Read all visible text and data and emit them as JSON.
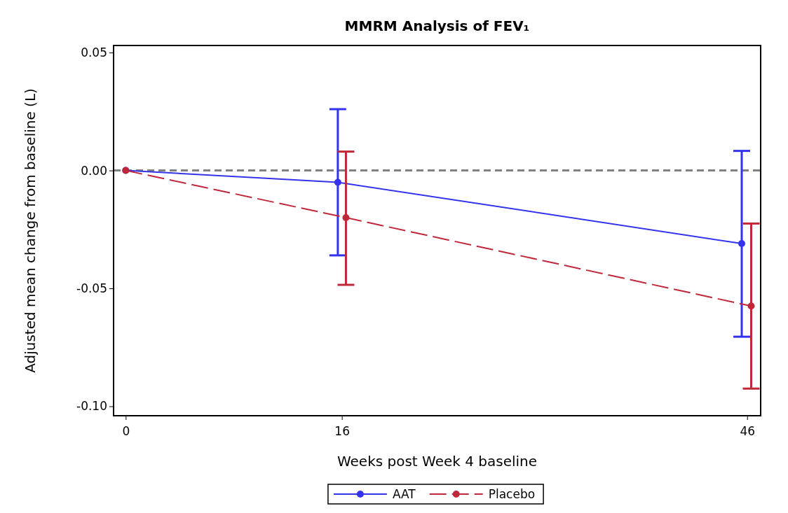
{
  "chart_data": {
    "type": "line",
    "title": "MMRM Analysis of FEV₁",
    "xlabel": "Weeks post Week 4 baseline",
    "ylabel": "Adjusted mean change from baseline (L)",
    "xlim": [
      -0.9,
      47
    ],
    "xticks": [
      0,
      16,
      46
    ],
    "ylim": [
      -0.104,
      0.053
    ],
    "yticks": [
      {
        "value": 0.05,
        "label": "0.05"
      },
      {
        "value": 0,
        "label": "0.00"
      },
      {
        "value": -0.05,
        "label": "-0.05"
      },
      {
        "value": -0.1,
        "label": "-0.10"
      }
    ],
    "marker": "circle",
    "legend": "bottom",
    "grid": false,
    "ref_lines": [
      {
        "axis": "y",
        "value": 0,
        "color": "#808080",
        "line_style": "dashed"
      }
    ],
    "series": [
      {
        "name": "AAT",
        "color": "#3333ee",
        "line_style": "solid",
        "x": [
          0,
          15.7,
          45.6
        ],
        "values": [
          0,
          -0.005,
          -0.031
        ],
        "errors": [
          null,
          [
            -0.036,
            0.026
          ],
          [
            -0.0705,
            0.0083
          ]
        ]
      },
      {
        "name": "Placebo",
        "color": "#c0283a",
        "line_style": "dashed",
        "x": [
          0,
          16.3,
          46.3
        ],
        "values": [
          0,
          -0.02,
          -0.0575
        ],
        "errors": [
          null,
          [
            -0.0485,
            0.008
          ],
          [
            -0.0925,
            -0.0225
          ]
        ]
      }
    ]
  }
}
